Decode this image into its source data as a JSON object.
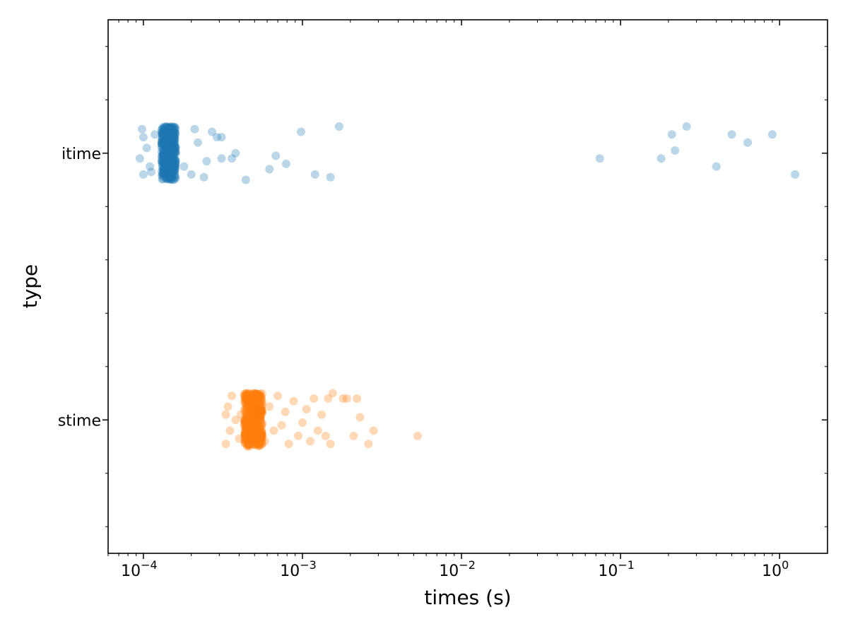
{
  "chart_data": {
    "type": "scatter",
    "title": "",
    "xlabel": "times (s)",
    "ylabel": "type",
    "xscale": "log",
    "xlim": [
      6e-05,
      2.0
    ],
    "x_ticks": [
      {
        "value": 0.0001,
        "base": "10",
        "exp": "−4"
      },
      {
        "value": 0.001,
        "base": "10",
        "exp": "−3"
      },
      {
        "value": 0.01,
        "base": "10",
        "exp": "−2"
      },
      {
        "value": 0.1,
        "base": "10",
        "exp": "−1"
      },
      {
        "value": 1,
        "base": "10",
        "exp": "0"
      }
    ],
    "categories": [
      "itime",
      "stime"
    ],
    "grid": false,
    "series": [
      {
        "category": "itime",
        "color": "#1f77b4",
        "core_range": [
          0.00013,
          0.00016
        ],
        "outliers": [
          {
            "x": 0.0001,
            "y": 0.08
          },
          {
            "x": 0.0001,
            "y": -0.06
          },
          {
            "x": 9.5e-05,
            "y": 0.02
          },
          {
            "x": 0.000105,
            "y": -0.02
          },
          {
            "x": 0.00011,
            "y": 0.05
          },
          {
            "x": 9.8e-05,
            "y": -0.09
          },
          {
            "x": 0.000112,
            "y": 0.07
          },
          {
            "x": 0.000118,
            "y": -0.07
          },
          {
            "x": 0.00018,
            "y": 0.05
          },
          {
            "x": 0.0002,
            "y": 0.08
          },
          {
            "x": 0.00022,
            "y": -0.04
          },
          {
            "x": 0.00025,
            "y": 0.03
          },
          {
            "x": 0.00027,
            "y": -0.08
          },
          {
            "x": 0.00029,
            "y": -0.06
          },
          {
            "x": 0.00031,
            "y": 0.02
          },
          {
            "x": 0.00024,
            "y": 0.09
          },
          {
            "x": 0.00021,
            "y": -0.09
          },
          {
            "x": 0.00036,
            "y": 0.02
          },
          {
            "x": 0.00038,
            "y": 0.0
          },
          {
            "x": 0.00044,
            "y": 0.1
          },
          {
            "x": 0.00031,
            "y": -0.06
          },
          {
            "x": 0.00062,
            "y": 0.06
          },
          {
            "x": 0.00068,
            "y": 0.01
          },
          {
            "x": 0.00079,
            "y": 0.04
          },
          {
            "x": 0.00098,
            "y": -0.08
          },
          {
            "x": 0.0012,
            "y": 0.08
          },
          {
            "x": 0.0015,
            "y": 0.09
          },
          {
            "x": 0.0017,
            "y": -0.1
          },
          {
            "x": 0.074,
            "y": 0.02
          },
          {
            "x": 0.18,
            "y": 0.02
          },
          {
            "x": 0.21,
            "y": -0.07
          },
          {
            "x": 0.22,
            "y": -0.01
          },
          {
            "x": 0.26,
            "y": -0.1
          },
          {
            "x": 0.4,
            "y": 0.05
          },
          {
            "x": 0.5,
            "y": -0.07
          },
          {
            "x": 0.63,
            "y": -0.04
          },
          {
            "x": 0.9,
            "y": -0.07
          },
          {
            "x": 1.25,
            "y": 0.08
          }
        ]
      },
      {
        "category": "stime",
        "color": "#ff7f0e",
        "core_range": [
          0.00043,
          0.00056
        ],
        "outliers": [
          {
            "x": 0.00033,
            "y": 0.09
          },
          {
            "x": 0.00034,
            "y": -0.05
          },
          {
            "x": 0.00035,
            "y": 0.04
          },
          {
            "x": 0.00036,
            "y": -0.09
          },
          {
            "x": 0.00038,
            "y": 0.0
          },
          {
            "x": 0.0004,
            "y": 0.07
          },
          {
            "x": 0.00041,
            "y": -0.02
          },
          {
            "x": 0.00033,
            "y": -0.02
          },
          {
            "x": 0.00058,
            "y": 0.08
          },
          {
            "x": 0.00062,
            "y": -0.05
          },
          {
            "x": 0.00066,
            "y": 0.04
          },
          {
            "x": 0.0007,
            "y": -0.09
          },
          {
            "x": 0.00074,
            "y": 0.02
          },
          {
            "x": 0.00078,
            "y": -0.03
          },
          {
            "x": 0.00082,
            "y": 0.09
          },
          {
            "x": 0.00088,
            "y": -0.07
          },
          {
            "x": 0.00094,
            "y": 0.06
          },
          {
            "x": 0.001,
            "y": 0.01
          },
          {
            "x": 0.00106,
            "y": -0.04
          },
          {
            "x": 0.00112,
            "y": 0.08
          },
          {
            "x": 0.00118,
            "y": -0.08
          },
          {
            "x": 0.00125,
            "y": 0.04
          },
          {
            "x": 0.00132,
            "y": -0.02
          },
          {
            "x": 0.0014,
            "y": 0.06
          },
          {
            "x": 0.00145,
            "y": -0.08
          },
          {
            "x": 0.0015,
            "y": 0.09
          },
          {
            "x": 0.00155,
            "y": -0.1
          },
          {
            "x": 0.0018,
            "y": -0.08
          },
          {
            "x": 0.0019,
            "y": -0.08
          },
          {
            "x": 0.0021,
            "y": 0.06
          },
          {
            "x": 0.0022,
            "y": -0.08
          },
          {
            "x": 0.0023,
            "y": -0.01
          },
          {
            "x": 0.0026,
            "y": 0.09
          },
          {
            "x": 0.0028,
            "y": 0.04
          },
          {
            "x": 0.0053,
            "y": 0.06
          }
        ]
      }
    ]
  }
}
